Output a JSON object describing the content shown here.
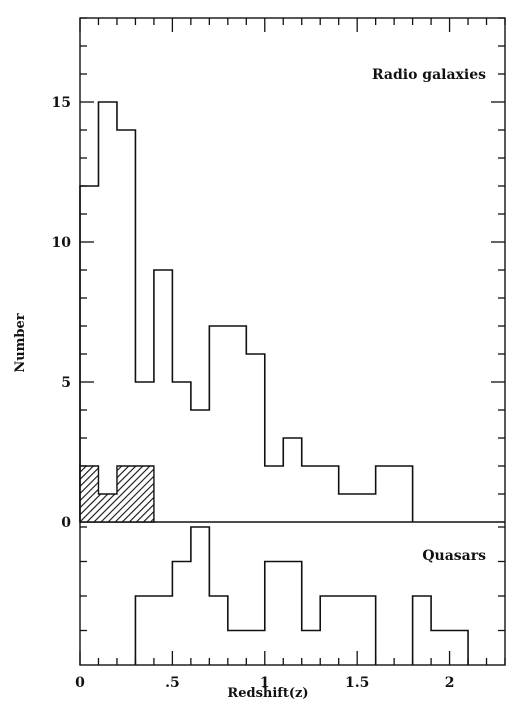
{
  "chart_data": {
    "type": "histogram",
    "xlabel": "Redshift(z)",
    "ylabel": "Number",
    "xlim": [
      0,
      2.3
    ],
    "bin_width": 0.1,
    "x_ticks": [
      {
        "value": 0,
        "label": "0"
      },
      {
        "value": 0.5,
        "label": ".5"
      },
      {
        "value": 1,
        "label": "1"
      },
      {
        "value": 1.5,
        "label": "1.5"
      },
      {
        "value": 2,
        "label": "2"
      }
    ],
    "top_panel": {
      "label": "Radio galaxies",
      "ylim": [
        0,
        18
      ],
      "y_ticks": [
        {
          "value": 0,
          "label": "0"
        },
        {
          "value": 5,
          "label": "5"
        },
        {
          "value": 10,
          "label": "10"
        },
        {
          "value": 15,
          "label": "15"
        }
      ],
      "series": [
        {
          "style": "outline",
          "bin_starts": [
            0.0,
            0.1,
            0.2,
            0.3,
            0.4,
            0.5,
            0.6,
            0.7,
            0.8,
            0.9,
            1.0,
            1.1,
            1.2,
            1.3,
            1.4,
            1.5,
            1.6,
            1.7
          ],
          "values": [
            12,
            15,
            14,
            5,
            9,
            5,
            4,
            7,
            7,
            6,
            2,
            3,
            2,
            2,
            1,
            1,
            2,
            2
          ]
        },
        {
          "style": "hatched",
          "bin_starts": [
            0.0,
            0.1,
            0.2,
            0.3
          ],
          "values": [
            2,
            1,
            2,
            2
          ]
        }
      ]
    },
    "bottom_panel": {
      "label": "Quasars",
      "ylim": [
        0,
        5
      ],
      "series": [
        {
          "style": "outline",
          "bin_starts": [
            0.0,
            0.1,
            0.2,
            0.3,
            0.4,
            0.5,
            0.6,
            0.7,
            0.8,
            0.9,
            1.0,
            1.1,
            1.2,
            1.3,
            1.4,
            1.5,
            1.6,
            1.7,
            1.8,
            1.9,
            2.0
          ],
          "values": [
            0,
            0,
            0,
            2,
            2,
            3,
            4,
            2,
            1,
            1,
            3,
            3,
            1,
            2,
            2,
            2,
            0,
            0,
            2,
            1,
            1
          ]
        }
      ]
    }
  }
}
